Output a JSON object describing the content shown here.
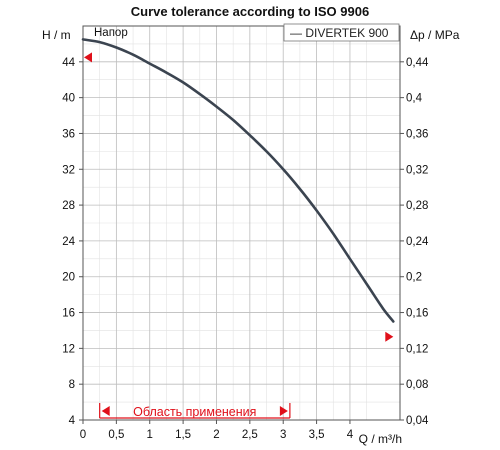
{
  "chart_data": {
    "type": "line",
    "title": "Curve tolerance according to ISO 9906",
    "x_axis": {
      "label": "Q / m³/h",
      "range": [
        0,
        4.75
      ],
      "ticks": [
        0,
        0.5,
        1,
        1.5,
        2,
        2.5,
        3,
        3.5,
        4
      ],
      "tick_labels": [
        "0",
        "0,5",
        "1",
        "1,5",
        "2",
        "2,5",
        "3",
        "3,5",
        "4"
      ]
    },
    "y_left": {
      "label": "H / m",
      "range": [
        4,
        48
      ],
      "ticks": [
        4,
        8,
        12,
        16,
        20,
        24,
        28,
        32,
        36,
        40,
        44
      ],
      "tick_labels": [
        "4",
        "8",
        "12",
        "16",
        "20",
        "24",
        "28",
        "32",
        "36",
        "40",
        "44"
      ]
    },
    "y_right": {
      "label": "Δp / MPa",
      "range": [
        0.04,
        0.48
      ],
      "ticks": [
        0.04,
        0.08,
        0.12,
        0.16,
        0.2,
        0.24,
        0.28,
        0.32,
        0.36,
        0.4,
        0.44
      ],
      "tick_labels": [
        "0,04",
        "0,08",
        "0,12",
        "0,16",
        "0,2",
        "0,24",
        "0,28",
        "0,32",
        "0,36",
        "0,4",
        "0,44"
      ]
    },
    "grid": true,
    "legend": {
      "position": "top-right",
      "entries": [
        "— DIVERTEK 900"
      ]
    },
    "series": [
      {
        "name": "Напор",
        "x": [
          0,
          0.25,
          0.5,
          0.75,
          1,
          1.25,
          1.5,
          1.75,
          2,
          2.25,
          2.5,
          2.75,
          3,
          3.25,
          3.5,
          3.75,
          4,
          4.25,
          4.5,
          4.65
        ],
        "y": [
          46.5,
          46.2,
          45.6,
          44.8,
          43.8,
          42.8,
          41.7,
          40.4,
          39,
          37.5,
          35.8,
          34,
          32,
          29.8,
          27.4,
          24.8,
          22,
          19.2,
          16.4,
          15
        ]
      }
    ],
    "annotations": {
      "application_range_label": "Область применения",
      "application_range": [
        0.25,
        3.1
      ],
      "marker_left": {
        "x": 0,
        "y": 44.5
      },
      "marker_right": {
        "x": 4.65,
        "y": 13.3
      }
    }
  }
}
